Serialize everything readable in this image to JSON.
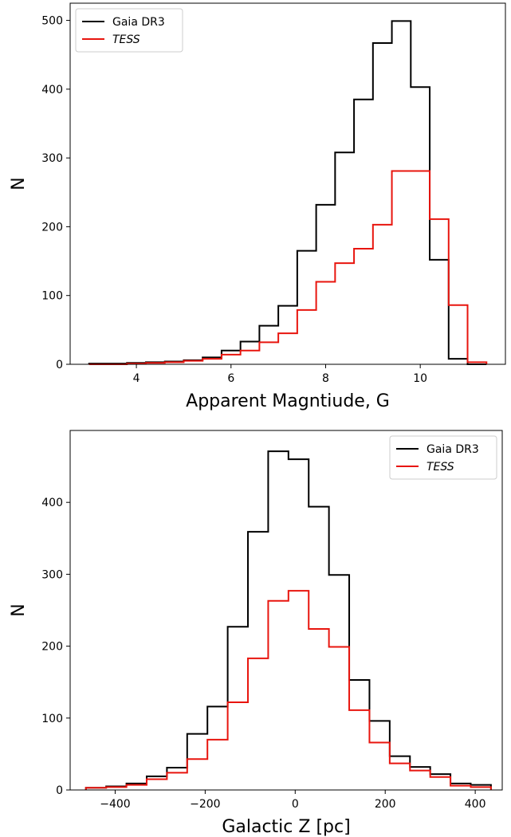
{
  "chart_data": [
    {
      "type": "step-histogram",
      "xlabel": "Apparent Magntiude, G",
      "ylabel": "N",
      "xlim": [
        2.6,
        11.8
      ],
      "ylim": [
        0,
        525
      ],
      "xticks": [
        4,
        6,
        8,
        10
      ],
      "yticks": [
        0,
        100,
        200,
        300,
        400,
        500
      ],
      "xtick_labels": [
        "4",
        "6",
        "8",
        "10"
      ],
      "ytick_labels": [
        "0",
        "100",
        "200",
        "300",
        "400",
        "500"
      ],
      "legend_position": "upper-left",
      "bin_edges": [
        3.0,
        3.4,
        3.8,
        4.2,
        4.6,
        5.0,
        5.4,
        5.8,
        6.2,
        6.6,
        7.0,
        7.4,
        7.8,
        8.2,
        8.6,
        9.0,
        9.4,
        9.8,
        10.2,
        10.6,
        11.0,
        11.4
      ],
      "series": [
        {
          "name": "Gaia DR3",
          "italic": false,
          "color": "#000000",
          "values": [
            1,
            1,
            2,
            3,
            4,
            6,
            10,
            20,
            33,
            56,
            85,
            165,
            232,
            308,
            385,
            467,
            499,
            403,
            152,
            8,
            0
          ]
        },
        {
          "name": "TESS",
          "italic": true,
          "color": "#e8150e",
          "values": [
            0,
            0,
            1,
            2,
            3,
            5,
            8,
            14,
            20,
            32,
            45,
            79,
            120,
            147,
            168,
            203,
            281,
            281,
            211,
            86,
            3
          ]
        }
      ]
    },
    {
      "type": "step-histogram",
      "xlabel": "Galactic Z [pc]",
      "ylabel": "N",
      "xlim": [
        -500,
        460
      ],
      "ylim": [
        0,
        500
      ],
      "xticks": [
        -400,
        -200,
        0,
        200,
        400
      ],
      "yticks": [
        0,
        100,
        200,
        300,
        400
      ],
      "xtick_labels": [
        "−400",
        "−200",
        "0",
        "200",
        "400"
      ],
      "ytick_labels": [
        "0",
        "100",
        "200",
        "300",
        "400"
      ],
      "legend_position": "upper-right",
      "bin_edges": [
        -465,
        -420,
        -375,
        -330,
        -285,
        -240,
        -195,
        -150,
        -105,
        -60,
        -15,
        30,
        75,
        120,
        165,
        210,
        255,
        300,
        345,
        390,
        435
      ],
      "series": [
        {
          "name": "Gaia DR3",
          "italic": false,
          "color": "#000000",
          "values": [
            3,
            5,
            9,
            19,
            31,
            78,
            116,
            227,
            359,
            471,
            460,
            394,
            299,
            153,
            96,
            47,
            32,
            22,
            9,
            7
          ]
        },
        {
          "name": "TESS",
          "italic": true,
          "color": "#e8150e",
          "values": [
            3,
            4,
            7,
            15,
            24,
            43,
            70,
            122,
            183,
            263,
            277,
            224,
            199,
            111,
            66,
            37,
            27,
            18,
            6,
            4
          ]
        }
      ]
    }
  ]
}
